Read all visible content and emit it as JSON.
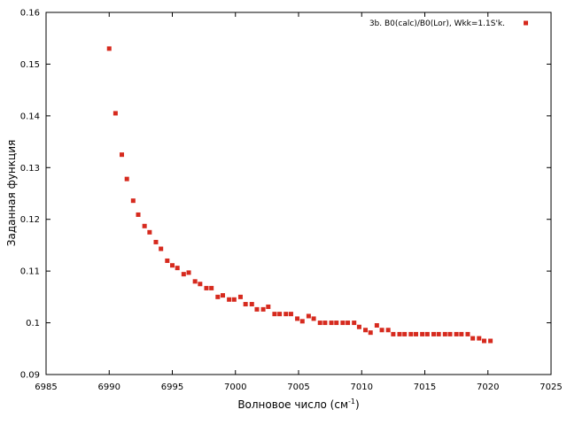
{
  "chart_data": {
    "type": "scatter",
    "title": "",
    "xlabel": "Волновое число (см",
    "xlabel_sup": "-1",
    "xlabel_close": ")",
    "ylabel": "Заданная функция",
    "xlim": [
      6985,
      7025
    ],
    "ylim": [
      0.09,
      0.16
    ],
    "xticks": [
      6985,
      6990,
      6995,
      7000,
      7005,
      7010,
      7015,
      7020,
      7025
    ],
    "yticks": [
      0.09,
      0.1,
      0.11,
      0.12,
      0.13,
      0.14,
      0.15,
      0.16
    ],
    "ytick_labels": [
      "0.09",
      "0.1",
      "0.11",
      "0.12",
      "0.13",
      "0.14",
      "0.15",
      "0.16"
    ],
    "grid": false,
    "legend_position": "top-right",
    "series": [
      {
        "name": "3b. B0(calc)/B0(Lor), Wkk=1.1S'k.",
        "color": "#d62a1e",
        "marker": "square",
        "x": [
          6990.0,
          6990.5,
          6991.0,
          6991.4,
          6991.9,
          6992.3,
          6992.8,
          6993.2,
          6993.7,
          6994.1,
          6994.6,
          6995.0,
          6995.4,
          6995.9,
          6996.3,
          6996.8,
          6997.2,
          6997.7,
          6998.1,
          6998.6,
          6999.0,
          6999.5,
          6999.9,
          7000.4,
          7000.8,
          7001.3,
          7001.7,
          7002.2,
          7002.6,
          7003.1,
          7003.5,
          7004.0,
          7004.4,
          7004.9,
          7005.3,
          7005.8,
          7006.2,
          7006.7,
          7007.1,
          7007.6,
          7008.0,
          7008.5,
          7008.9,
          7009.4,
          7009.8,
          7010.3,
          7010.7,
          7011.2,
          7011.6,
          7012.1,
          7012.5,
          7013.0,
          7013.4,
          7013.9,
          7014.3,
          7014.8,
          7015.2,
          7015.7,
          7016.1,
          7016.6,
          7017.0,
          7017.5,
          7017.9,
          7018.4,
          7018.8,
          7019.3,
          7019.7,
          7020.2
        ],
        "y": [
          0.153,
          0.1405,
          0.1325,
          0.1278,
          0.1236,
          0.1209,
          0.1187,
          0.1175,
          0.1156,
          0.1143,
          0.112,
          0.1111,
          0.1106,
          0.1094,
          0.1097,
          0.108,
          0.1075,
          0.1067,
          0.1067,
          0.105,
          0.1053,
          0.1045,
          0.1045,
          0.105,
          0.1036,
          0.1036,
          0.1026,
          0.1026,
          0.1031,
          0.1017,
          0.1017,
          0.1017,
          0.1017,
          0.1008,
          0.1003,
          0.1013,
          0.1008,
          0.1,
          0.1,
          0.1,
          0.1,
          0.1,
          0.1,
          0.1,
          0.0992,
          0.0986,
          0.0981,
          0.0995,
          0.0986,
          0.0986,
          0.0978,
          0.0978,
          0.0978,
          0.0978,
          0.0978,
          0.0978,
          0.0978,
          0.0978,
          0.0978,
          0.0978,
          0.0978,
          0.0978,
          0.0978,
          0.0978,
          0.097,
          0.097,
          0.0965,
          0.0965
        ]
      }
    ]
  }
}
